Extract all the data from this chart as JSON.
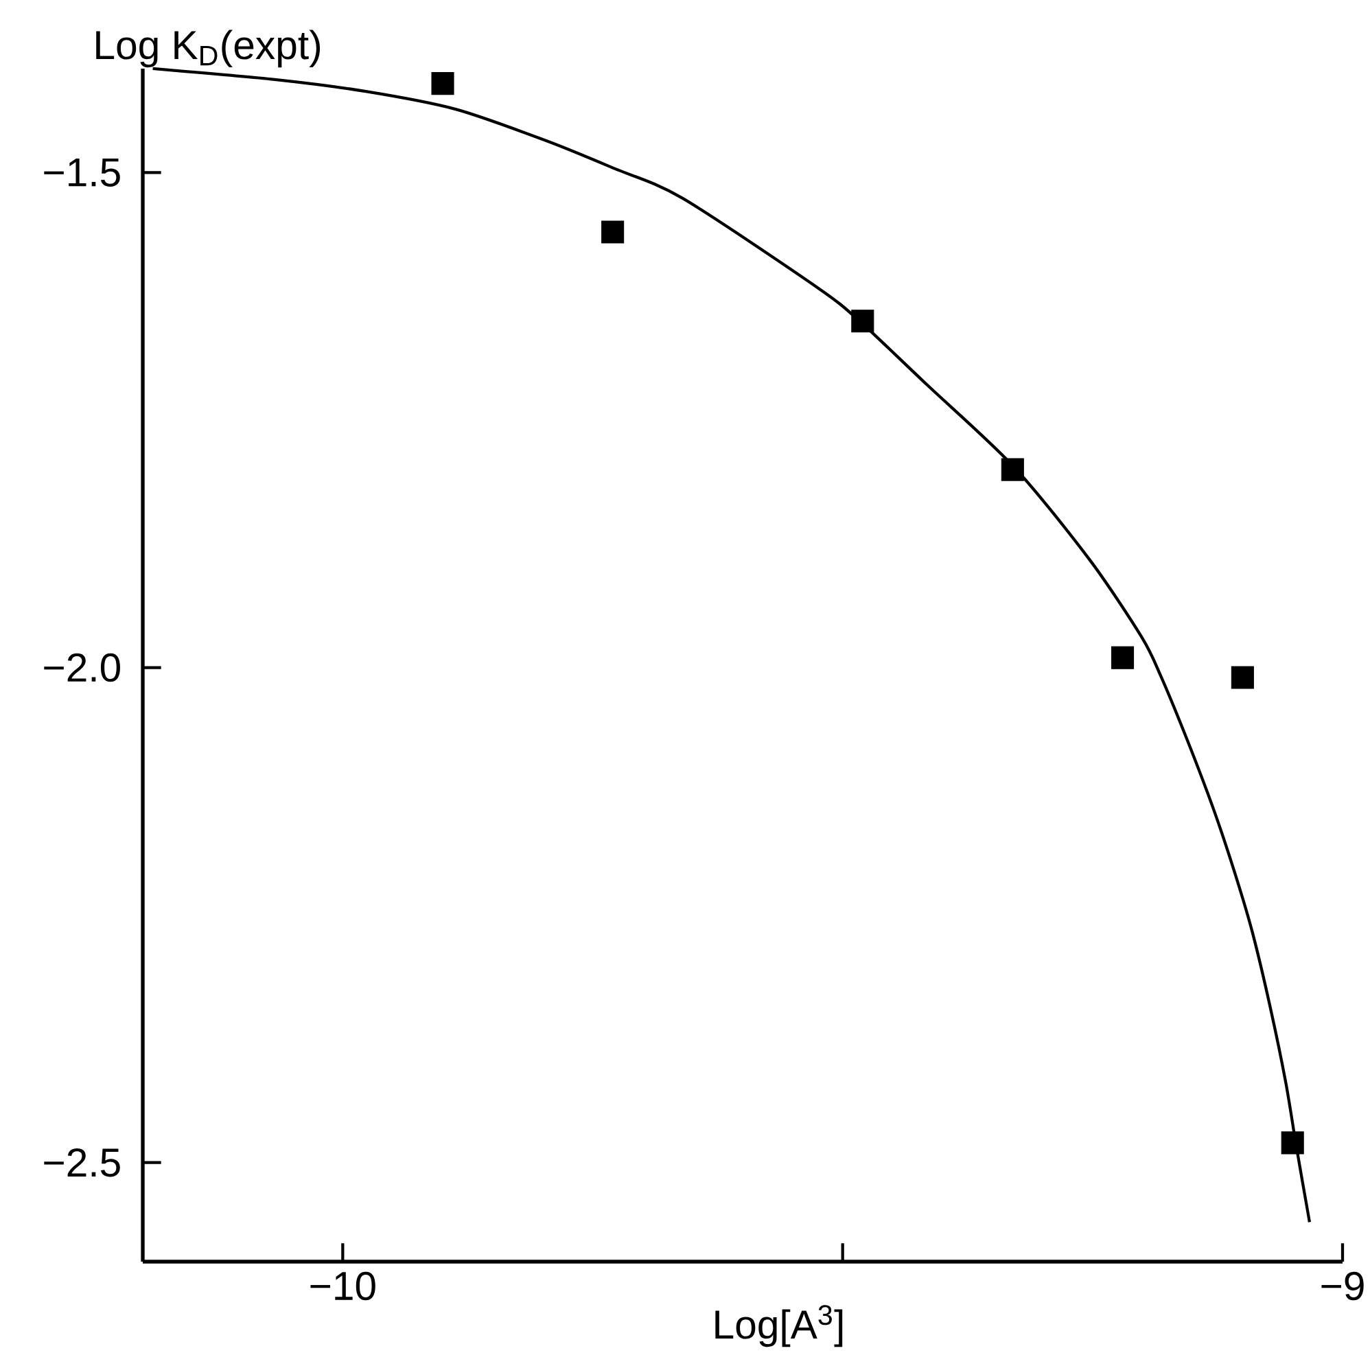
{
  "chart_data": {
    "type": "scatter",
    "xlabel": "Log[A$^{3}$]",
    "ylabel": "Log K$_{D}$(expt)",
    "xlim": [
      -10.2,
      -9
    ],
    "ylim": [
      -2.6,
      -1.395
    ],
    "xticks": [
      {
        "value": -10,
        "label": "−10"
      },
      {
        "value": -9.5,
        "label": null
      },
      {
        "value": -9,
        "label": "−9"
      }
    ],
    "yticks": [
      {
        "value": -1.5,
        "label": "−1.5"
      },
      {
        "value": -2.0,
        "label": "−2.0"
      },
      {
        "value": -2.5,
        "label": "−2.5"
      }
    ],
    "series": [
      {
        "color": "#000000",
        "marker": "square",
        "x": [
          -9.9,
          -9.73,
          -9.48,
          -9.33,
          -9.22,
          -9.1,
          -9.05
        ],
        "values": [
          -1.41,
          -1.56,
          -1.65,
          -1.8,
          -1.99,
          -2.01,
          -2.48
        ]
      },
      {
        "type": "line",
        "color": "#000000",
        "marker": "none",
        "line_style": "solid",
        "x": [
          -10.19,
          -10.068,
          -9.977,
          -9.887,
          -9.796,
          -9.728,
          -9.66,
          -9.524,
          -9.482,
          -9.416,
          -9.329,
          -9.253,
          -9.201,
          -9.182,
          -9.155,
          -9.128,
          -9.106,
          -9.09,
          -9.073,
          -9.057,
          -9.046,
          -9.033
        ],
        "values": [
          -1.395,
          -1.406,
          -1.418,
          -1.436,
          -1.468,
          -1.496,
          -1.526,
          -1.617,
          -1.651,
          -1.714,
          -1.797,
          -1.891,
          -1.969,
          -2.008,
          -2.074,
          -2.146,
          -2.213,
          -2.268,
          -2.34,
          -2.418,
          -2.485,
          -2.56
        ]
      }
    ]
  }
}
